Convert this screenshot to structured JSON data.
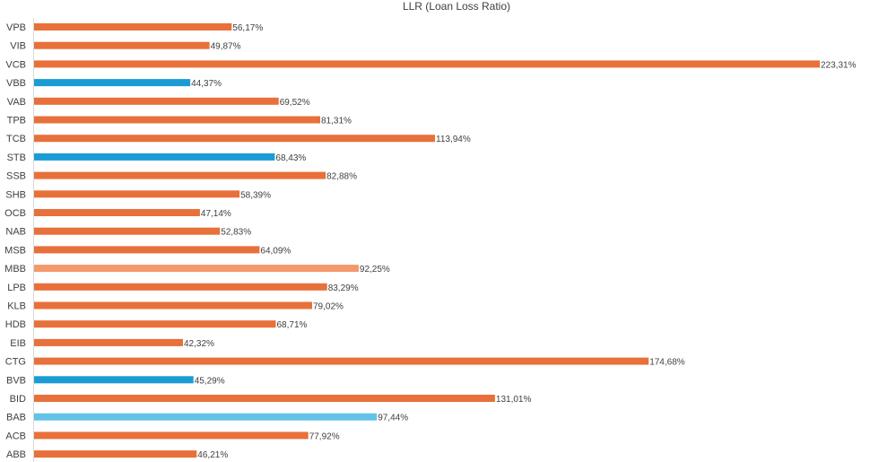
{
  "chart_data": {
    "type": "bar",
    "orientation": "horizontal",
    "title": "LLR (Loan Loss  Ratio)",
    "xlabel": "",
    "ylabel": "",
    "xlim": [
      0,
      223.31
    ],
    "grid": false,
    "legend": "none",
    "categories": [
      "VPB",
      "VIB",
      "VCB",
      "VBB",
      "VAB",
      "TPB",
      "TCB",
      "STB",
      "SSB",
      "SHB",
      "OCB",
      "NAB",
      "MSB",
      "MBB",
      "LPB",
      "KLB",
      "HDB",
      "EIB",
      "CTG",
      "BVB",
      "BID",
      "BAB",
      "ACB",
      "ABB"
    ],
    "values": [
      56.17,
      49.87,
      223.31,
      44.37,
      69.52,
      81.31,
      113.94,
      68.43,
      82.88,
      58.39,
      47.14,
      52.83,
      64.09,
      92.25,
      83.29,
      79.02,
      68.71,
      42.32,
      174.68,
      45.29,
      131.01,
      97.44,
      77.92,
      46.21
    ],
    "value_labels": [
      "56,17%",
      "49,87%",
      "223,31%",
      "44,37%",
      "69,52%",
      "81,31%",
      "113,94%",
      "68,43%",
      "82,88%",
      "58,39%",
      "47,14%",
      "52,83%",
      "64,09%",
      "92,25%",
      "83,29%",
      "79,02%",
      "68,71%",
      "42,32%",
      "174,68%",
      "45,29%",
      "131,01%",
      "97,44%",
      "77,92%",
      "46,21%"
    ],
    "colors": [
      "#E8703A",
      "#E8703A",
      "#E8703A",
      "#1B9CD4",
      "#E8703A",
      "#E8703A",
      "#E8703A",
      "#1B9CD4",
      "#E8703A",
      "#E8703A",
      "#E8703A",
      "#E8703A",
      "#E8703A",
      "#F4996B",
      "#E8703A",
      "#E8703A",
      "#E8703A",
      "#E8703A",
      "#E8703A",
      "#1B9CD4",
      "#E8703A",
      "#63C2E6",
      "#E8703A",
      "#E8703A"
    ]
  }
}
